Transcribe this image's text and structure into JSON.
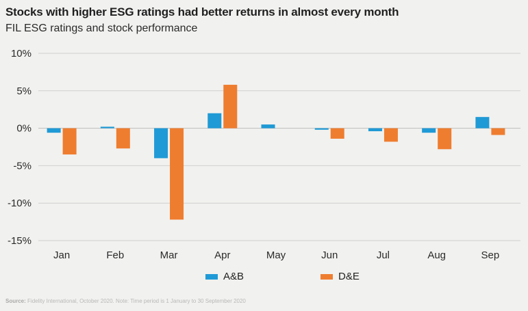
{
  "header": {
    "title": "Stocks with higher ESG ratings had better returns in almost every month",
    "subtitle": "FIL ESG ratings and stock performance"
  },
  "footer": {
    "source_label": "Source:",
    "source_text": "Fidelity International, October 2020. Note: Time period is 1 January to 30 September 2020"
  },
  "colors": {
    "ab": "#1f9ad6",
    "de": "#ef7d2f",
    "grid": "#cfcfcf",
    "zero": "#bdbdbd"
  },
  "chart_data": {
    "type": "bar",
    "title": "Stocks with higher ESG ratings had better returns in almost every month",
    "subtitle": "FIL ESG ratings and stock performance",
    "categories": [
      "Jan",
      "Feb",
      "Mar",
      "Apr",
      "May",
      "Jun",
      "Jul",
      "Aug",
      "Sep"
    ],
    "series": [
      {
        "name": "A&B",
        "color": "#1f9ad6",
        "values": [
          -0.6,
          0.2,
          -4.0,
          2.0,
          0.5,
          -0.2,
          -0.4,
          -0.6,
          1.5
        ]
      },
      {
        "name": "D&E",
        "color": "#ef7d2f",
        "values": [
          -3.5,
          -2.7,
          -12.2,
          5.8,
          0.0,
          -1.4,
          -1.8,
          -2.8,
          -0.9
        ]
      }
    ],
    "ylim": [
      -15,
      10
    ],
    "yticks": [
      10,
      5,
      0,
      -5,
      -10,
      -15
    ],
    "ytick_labels": [
      "10%",
      "5%",
      "0%",
      "-5%",
      "-10%",
      "-15%"
    ],
    "xlabel": "",
    "ylabel": "",
    "grid": "horizontal",
    "legend_position": "bottom"
  }
}
